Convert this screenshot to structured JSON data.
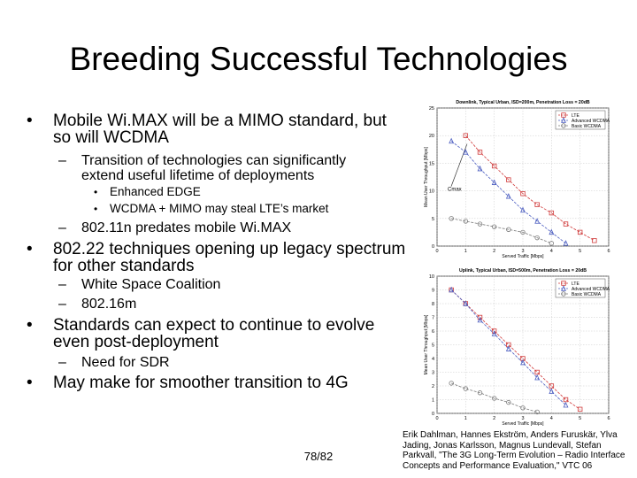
{
  "title": "Breeding Successful Technologies",
  "bullets": [
    {
      "text": "Mobile Wi.MAX will be a MIMO standard, but so will WCDMA",
      "children": [
        {
          "text": "Transition of technologies can significantly extend useful lifetime of deployments",
          "children": [
            {
              "text": "Enhanced EDGE"
            },
            {
              "text": "WCDMA + MIMO may steal LTE’s market"
            }
          ]
        },
        {
          "text": "802.11n predates mobile Wi.MAX"
        }
      ]
    },
    {
      "text": "802.22 techniques opening up legacy spectrum for other standards",
      "children": [
        {
          "text": "White Space Coalition"
        },
        {
          "text": "802.16m"
        }
      ]
    },
    {
      "text": "Standards can expect to continue to evolve even post-deployment",
      "children": [
        {
          "text": "Need for SDR"
        }
      ]
    },
    {
      "text": "May make for smoother transition to 4G"
    }
  ],
  "page_number": "78/82",
  "citation": "Erik Dahlman, Hannes Ekström, Anders Furuskär, Ylva Jading, Jonas Karlsson, Magnus Lundevall, Stefan Parkvall, \"The 3G Long-Term Evolution – Radio Interface Concepts and Performance Evaluation,\" VTC 06",
  "figures": [
    {
      "type": "line",
      "title": "Downlink, Typical Urban, ISD=200m, Penetration Loss = 20dB",
      "xlabel": "Served Traffic [Mbps]",
      "ylabel": "Mean User Throughput [Mbps]",
      "annotation": "Cmax",
      "xlim": [
        0,
        6
      ],
      "xticks": [
        0,
        1,
        2,
        3,
        4,
        5,
        6
      ],
      "ylim": [
        0,
        25
      ],
      "yticks": [
        0,
        5,
        10,
        15,
        20,
        25
      ],
      "series": [
        {
          "name": "LTE",
          "color": "#d03a3a",
          "marker": "square",
          "x": [
            1,
            1.5,
            2,
            2.5,
            3,
            3.5,
            4,
            4.5,
            5,
            5.5
          ],
          "values": [
            20,
            17,
            14.5,
            12,
            9.5,
            7.5,
            6,
            4,
            2.5,
            1
          ]
        },
        {
          "name": "Advanced WCDMA",
          "color": "#4a5cc0",
          "marker": "triangle",
          "x": [
            0.5,
            1,
            1.5,
            2,
            2.5,
            3,
            3.5,
            4,
            4.5
          ],
          "values": [
            19,
            17,
            14,
            11.5,
            9,
            6.5,
            4.5,
            2.5,
            0.5
          ]
        },
        {
          "name": "Basic WCDMA",
          "color": "#7a7a7a",
          "marker": "circle",
          "x": [
            0.5,
            1,
            1.5,
            2,
            2.5,
            3,
            3.5,
            4
          ],
          "values": [
            5,
            4.5,
            4,
            3.5,
            3,
            2.5,
            1.5,
            0.5
          ]
        }
      ]
    },
    {
      "type": "line",
      "title": "Uplink, Typical Urban, ISD=500m, Penetration Loss = 20dB",
      "xlabel": "Served Traffic [Mbps]",
      "ylabel": "Mean User Throughput [Mbps]",
      "xlim": [
        0,
        6
      ],
      "xticks": [
        0,
        1,
        2,
        3,
        4,
        5,
        6
      ],
      "ylim": [
        0,
        10
      ],
      "yticks": [
        0,
        1,
        2,
        3,
        4,
        5,
        6,
        7,
        8,
        9,
        10
      ],
      "series": [
        {
          "name": "LTE",
          "color": "#d03a3a",
          "marker": "square",
          "x": [
            0.5,
            1,
            1.5,
            2,
            2.5,
            3,
            3.5,
            4,
            4.5,
            5
          ],
          "values": [
            9,
            8,
            7,
            6,
            5,
            4,
            3,
            2,
            1,
            0.3
          ]
        },
        {
          "name": "Advanced WCDMA",
          "color": "#4a5cc0",
          "marker": "triangle",
          "x": [
            0.5,
            1,
            1.5,
            2,
            2.5,
            3,
            3.5,
            4,
            4.5
          ],
          "values": [
            9,
            8,
            6.8,
            5.8,
            4.7,
            3.7,
            2.6,
            1.6,
            0.6
          ]
        },
        {
          "name": "Basic WCDMA",
          "color": "#7a7a7a",
          "marker": "circle",
          "x": [
            0.5,
            1,
            1.5,
            2,
            2.5,
            3,
            3.5
          ],
          "values": [
            2.2,
            1.8,
            1.5,
            1.1,
            0.8,
            0.4,
            0.1
          ]
        }
      ]
    }
  ]
}
